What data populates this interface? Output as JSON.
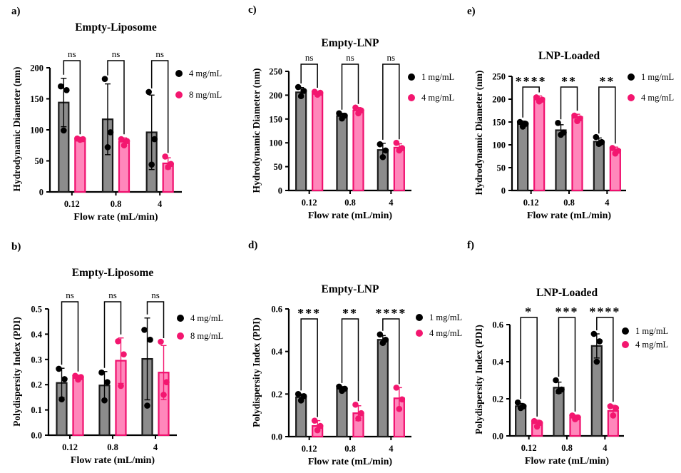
{
  "figure_type": "multi-panel-bar-figure",
  "colors": {
    "black": {
      "dot": "#000000",
      "bar_fill": "#8C8C8C",
      "bar_border": "#1A1A1A"
    },
    "pink": {
      "dot": "#F3166F",
      "bar_fill": "#FF87BB",
      "bar_border": "#F0106E"
    },
    "axis": "#000000"
  },
  "chart_data": [
    {
      "id": "a",
      "panel_label": "a)",
      "type": "bar",
      "title": "Empty-Liposome",
      "xlabel": "Flow rate (mL/min)",
      "ylabel": "Hydrodynamic Diameter (nm)",
      "ylim": [
        0,
        200
      ],
      "ytick_step": 50,
      "ytick_decimals": 0,
      "grid": false,
      "legend_position": "right",
      "categories": [
        "0.12",
        "0.8",
        "4"
      ],
      "series": [
        {
          "name": "4 mg/mL",
          "color": "black",
          "means": [
            144,
            117,
            96
          ],
          "sd": [
            39,
            57,
            60
          ],
          "points": [
            [
              170,
              164,
              99
            ],
            [
              182,
              96,
              72
            ],
            [
              161,
              85,
              44
            ]
          ]
        },
        {
          "name": "8 mg/mL",
          "color": "pink",
          "means": [
            85,
            81,
            46
          ],
          "sd": [
            2,
            6,
            9
          ],
          "points": [
            [
              86,
              85,
              84
            ],
            [
              85,
              82,
              75
            ],
            [
              57,
              45,
              40
            ]
          ]
        }
      ],
      "significance": [
        "ns",
        "ns",
        "ns"
      ]
    },
    {
      "id": "b",
      "panel_label": "b)",
      "type": "bar",
      "title": "Empty-Liposome",
      "xlabel": "Flow rate (mL/min)",
      "ylabel": "Polydispersity Index (PDI)",
      "ylim": [
        0,
        0.5
      ],
      "ytick_step": 0.1,
      "ytick_decimals": 1,
      "grid": false,
      "legend_position": "right",
      "categories": [
        "0.12",
        "0.8",
        "4"
      ],
      "series": [
        {
          "name": "4 mg/mL",
          "color": "black",
          "means": [
            0.207,
            0.197,
            0.302
          ],
          "sd": [
            0.058,
            0.055,
            0.162
          ],
          "points": [
            [
              0.263,
              0.222,
              0.142
            ],
            [
              0.248,
              0.21,
              0.138
            ],
            [
              0.417,
              0.378,
              0.117
            ]
          ]
        },
        {
          "name": "8 mg/mL",
          "color": "pink",
          "means": [
            0.228,
            0.295,
            0.248
          ],
          "sd": [
            0.01,
            0.09,
            0.107
          ],
          "points": [
            [
              0.235,
              0.23,
              0.22
            ],
            [
              0.372,
              0.32,
              0.195
            ],
            [
              0.37,
              0.21,
              0.16
            ]
          ]
        }
      ],
      "significance": [
        "ns",
        "ns",
        "ns"
      ]
    },
    {
      "id": "c",
      "panel_label": "c)",
      "type": "bar",
      "title": "Empty-LNP",
      "xlabel": "Flow rate (mL/min)",
      "ylabel": "Hydrodynamic Diameter (nm)",
      "ylim": [
        0,
        250
      ],
      "ytick_step": 50,
      "ytick_decimals": 0,
      "grid": false,
      "legend_position": "right",
      "categories": [
        "0.12",
        "0.8",
        "4"
      ],
      "series": [
        {
          "name": "1 mg/mL",
          "color": "black",
          "means": [
            206,
            156,
            85
          ],
          "sd": [
            10,
            6,
            14
          ],
          "points": [
            [
              217,
              209,
              198
            ],
            [
              162,
              157,
              151
            ],
            [
              97,
              84,
              70
            ]
          ]
        },
        {
          "name": "4 mg/mL",
          "color": "pink",
          "means": [
            204,
            168,
            90
          ],
          "sd": [
            4,
            6,
            8
          ],
          "points": [
            [
              207,
              205,
              201
            ],
            [
              174,
              168,
              162
            ],
            [
              100,
              89,
              84
            ]
          ]
        }
      ],
      "significance": [
        "ns",
        "ns",
        "ns"
      ]
    },
    {
      "id": "d",
      "panel_label": "d)",
      "type": "bar",
      "title": "Empty-LNP",
      "xlabel": "Flow rate (mL/min)",
      "ylabel": "Polydispersity Index (PDI)",
      "ylim": [
        0,
        0.6
      ],
      "ytick_step": 0.2,
      "ytick_decimals": 1,
      "grid": false,
      "legend_position": "right",
      "categories": [
        "0.12",
        "0.8",
        "4"
      ],
      "series": [
        {
          "name": "1 mg/mL",
          "color": "black",
          "means": [
            0.185,
            0.225,
            0.455
          ],
          "sd": [
            0.015,
            0.01,
            0.02
          ],
          "points": [
            [
              0.2,
              0.19,
              0.17
            ],
            [
              0.235,
              0.225,
              0.215
            ],
            [
              0.48,
              0.455,
              0.44
            ]
          ]
        },
        {
          "name": "4 mg/mL",
          "color": "pink",
          "means": [
            0.05,
            0.11,
            0.18
          ],
          "sd": [
            0.025,
            0.035,
            0.05
          ],
          "points": [
            [
              0.075,
              0.05,
              0.03
            ],
            [
              0.15,
              0.11,
              0.085
            ],
            [
              0.23,
              0.175,
              0.13
            ]
          ]
        }
      ],
      "significance": [
        "***",
        "**",
        "****"
      ]
    },
    {
      "id": "e",
      "panel_label": "e)",
      "type": "bar",
      "title": "LNP-Loaded",
      "xlabel": "Flow rate (mL/min)",
      "ylabel": "Hydrodynamic Diameter (nm)",
      "ylim": [
        0,
        250
      ],
      "ytick_step": 50,
      "ytick_decimals": 0,
      "grid": false,
      "legend_position": "right",
      "categories": [
        "0.12",
        "0.8",
        "4"
      ],
      "series": [
        {
          "name": "1 mg/mL",
          "color": "black",
          "means": [
            147,
            132,
            107
          ],
          "sd": [
            5,
            12,
            8
          ],
          "points": [
            [
              150,
              146,
              140
            ],
            [
              148,
              127,
              122
            ],
            [
              117,
              106,
              102
            ]
          ]
        },
        {
          "name": "4 mg/mL",
          "color": "pink",
          "means": [
            202,
            161,
            89
          ],
          "sd": [
            5,
            6,
            6
          ],
          "points": [
            [
              204,
              199,
              195
            ],
            [
              164,
              158,
              152
            ],
            [
              93,
              87,
              81
            ]
          ]
        }
      ],
      "significance": [
        "****",
        "**",
        "**"
      ]
    },
    {
      "id": "f",
      "panel_label": "f)",
      "type": "bar",
      "title": "LNP-Loaded",
      "xlabel": "Flow rate (mL/min)",
      "ylabel": "Polydispersity Index (PDI)",
      "ylim": [
        0,
        0.6
      ],
      "ytick_step": 0.2,
      "ytick_decimals": 1,
      "grid": false,
      "legend_position": "right",
      "categories": [
        "0.12",
        "0.8",
        "4"
      ],
      "series": [
        {
          "name": "1 mg/mL",
          "color": "black",
          "means": [
            0.16,
            0.26,
            0.485
          ],
          "sd": [
            0.015,
            0.03,
            0.065
          ],
          "points": [
            [
              0.18,
              0.16,
              0.15
            ],
            [
              0.3,
              0.25,
              0.24
            ],
            [
              0.55,
              0.51,
              0.4
            ]
          ]
        },
        {
          "name": "4 mg/mL",
          "color": "pink",
          "means": [
            0.07,
            0.1,
            0.135
          ],
          "sd": [
            0.015,
            0.012,
            0.03
          ],
          "points": [
            [
              0.08,
              0.07,
              0.05
            ],
            [
              0.11,
              0.1,
              0.09
            ],
            [
              0.16,
              0.15,
              0.11
            ]
          ]
        }
      ],
      "significance": [
        "*",
        "***",
        "****"
      ]
    }
  ]
}
